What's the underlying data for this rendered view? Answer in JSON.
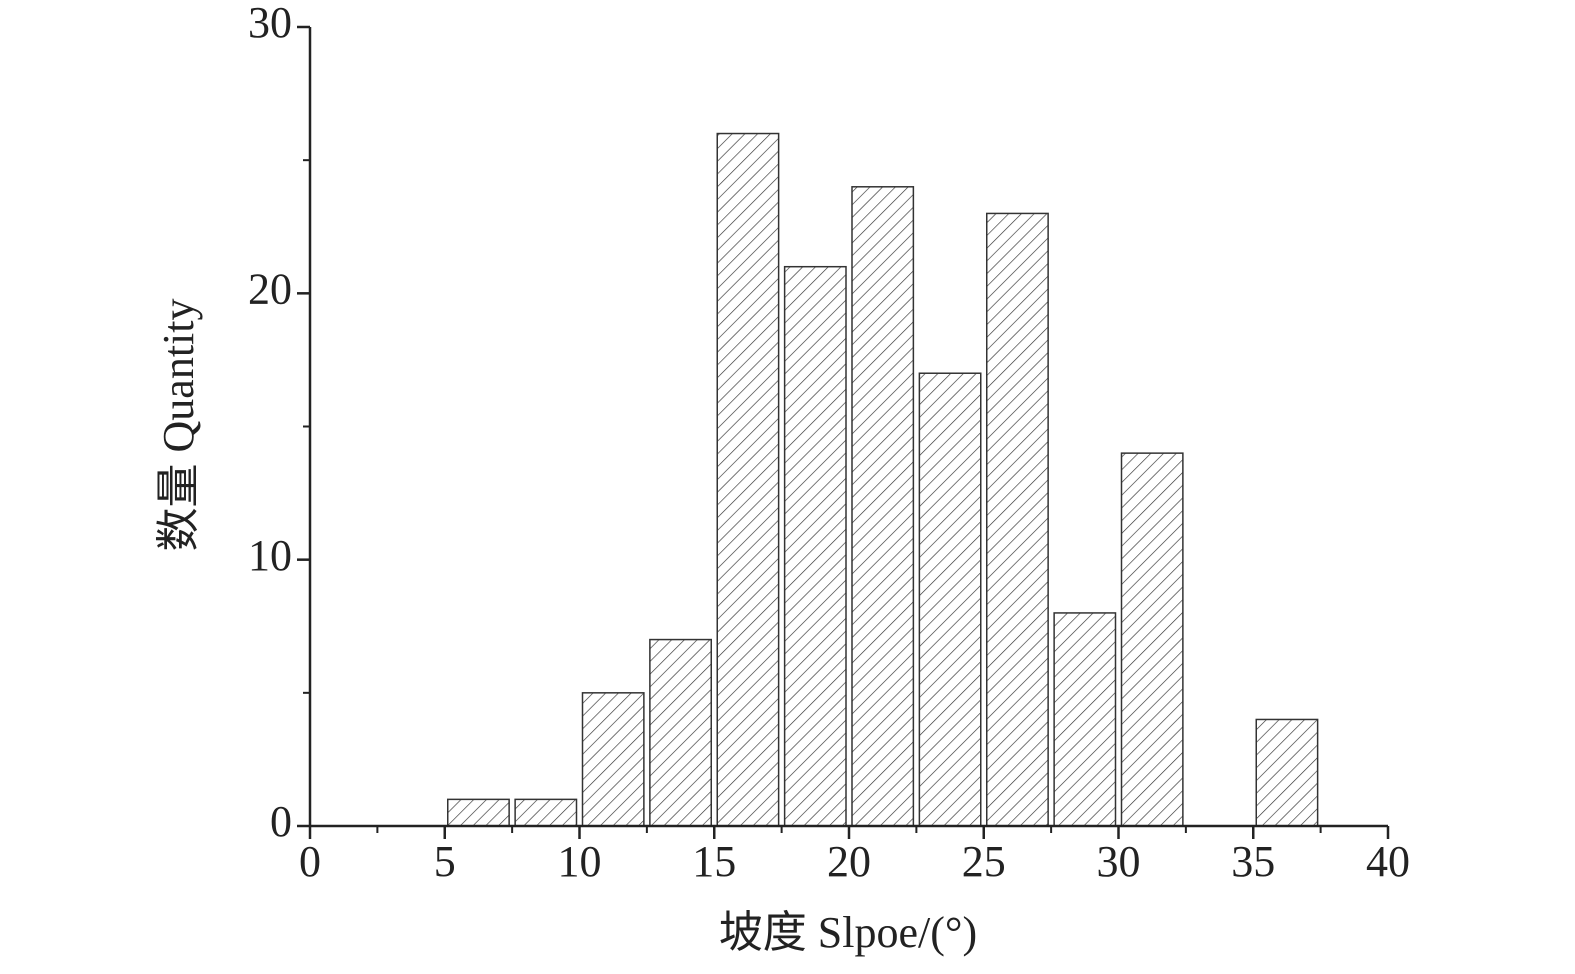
{
  "chart_data": {
    "type": "histogram",
    "xlabel": "坡度 Slpoe/(°)",
    "ylabel": "数量 Quantity",
    "bins": [
      5,
      7.5,
      10,
      12.5,
      15,
      17.5,
      20,
      22.5,
      25,
      27.5,
      30,
      32.5,
      35,
      37.5
    ],
    "values": [
      1,
      1,
      5,
      7,
      26,
      21,
      24,
      17,
      23,
      8,
      14,
      0,
      4
    ],
    "color": "#333333",
    "hatch": true,
    "xlim": [
      0,
      40
    ],
    "xticks": [
      0,
      5,
      10,
      15,
      20,
      25,
      30,
      35,
      40
    ],
    "minor_xticks": [
      2.5,
      7.5,
      12.5,
      17.5,
      22.5,
      27.5,
      32.5,
      37.5
    ],
    "ylim": [
      0,
      30
    ],
    "yticks": [
      0,
      10,
      20,
      30
    ],
    "minor_yticks": [
      5,
      15,
      25
    ],
    "grid": false
  }
}
